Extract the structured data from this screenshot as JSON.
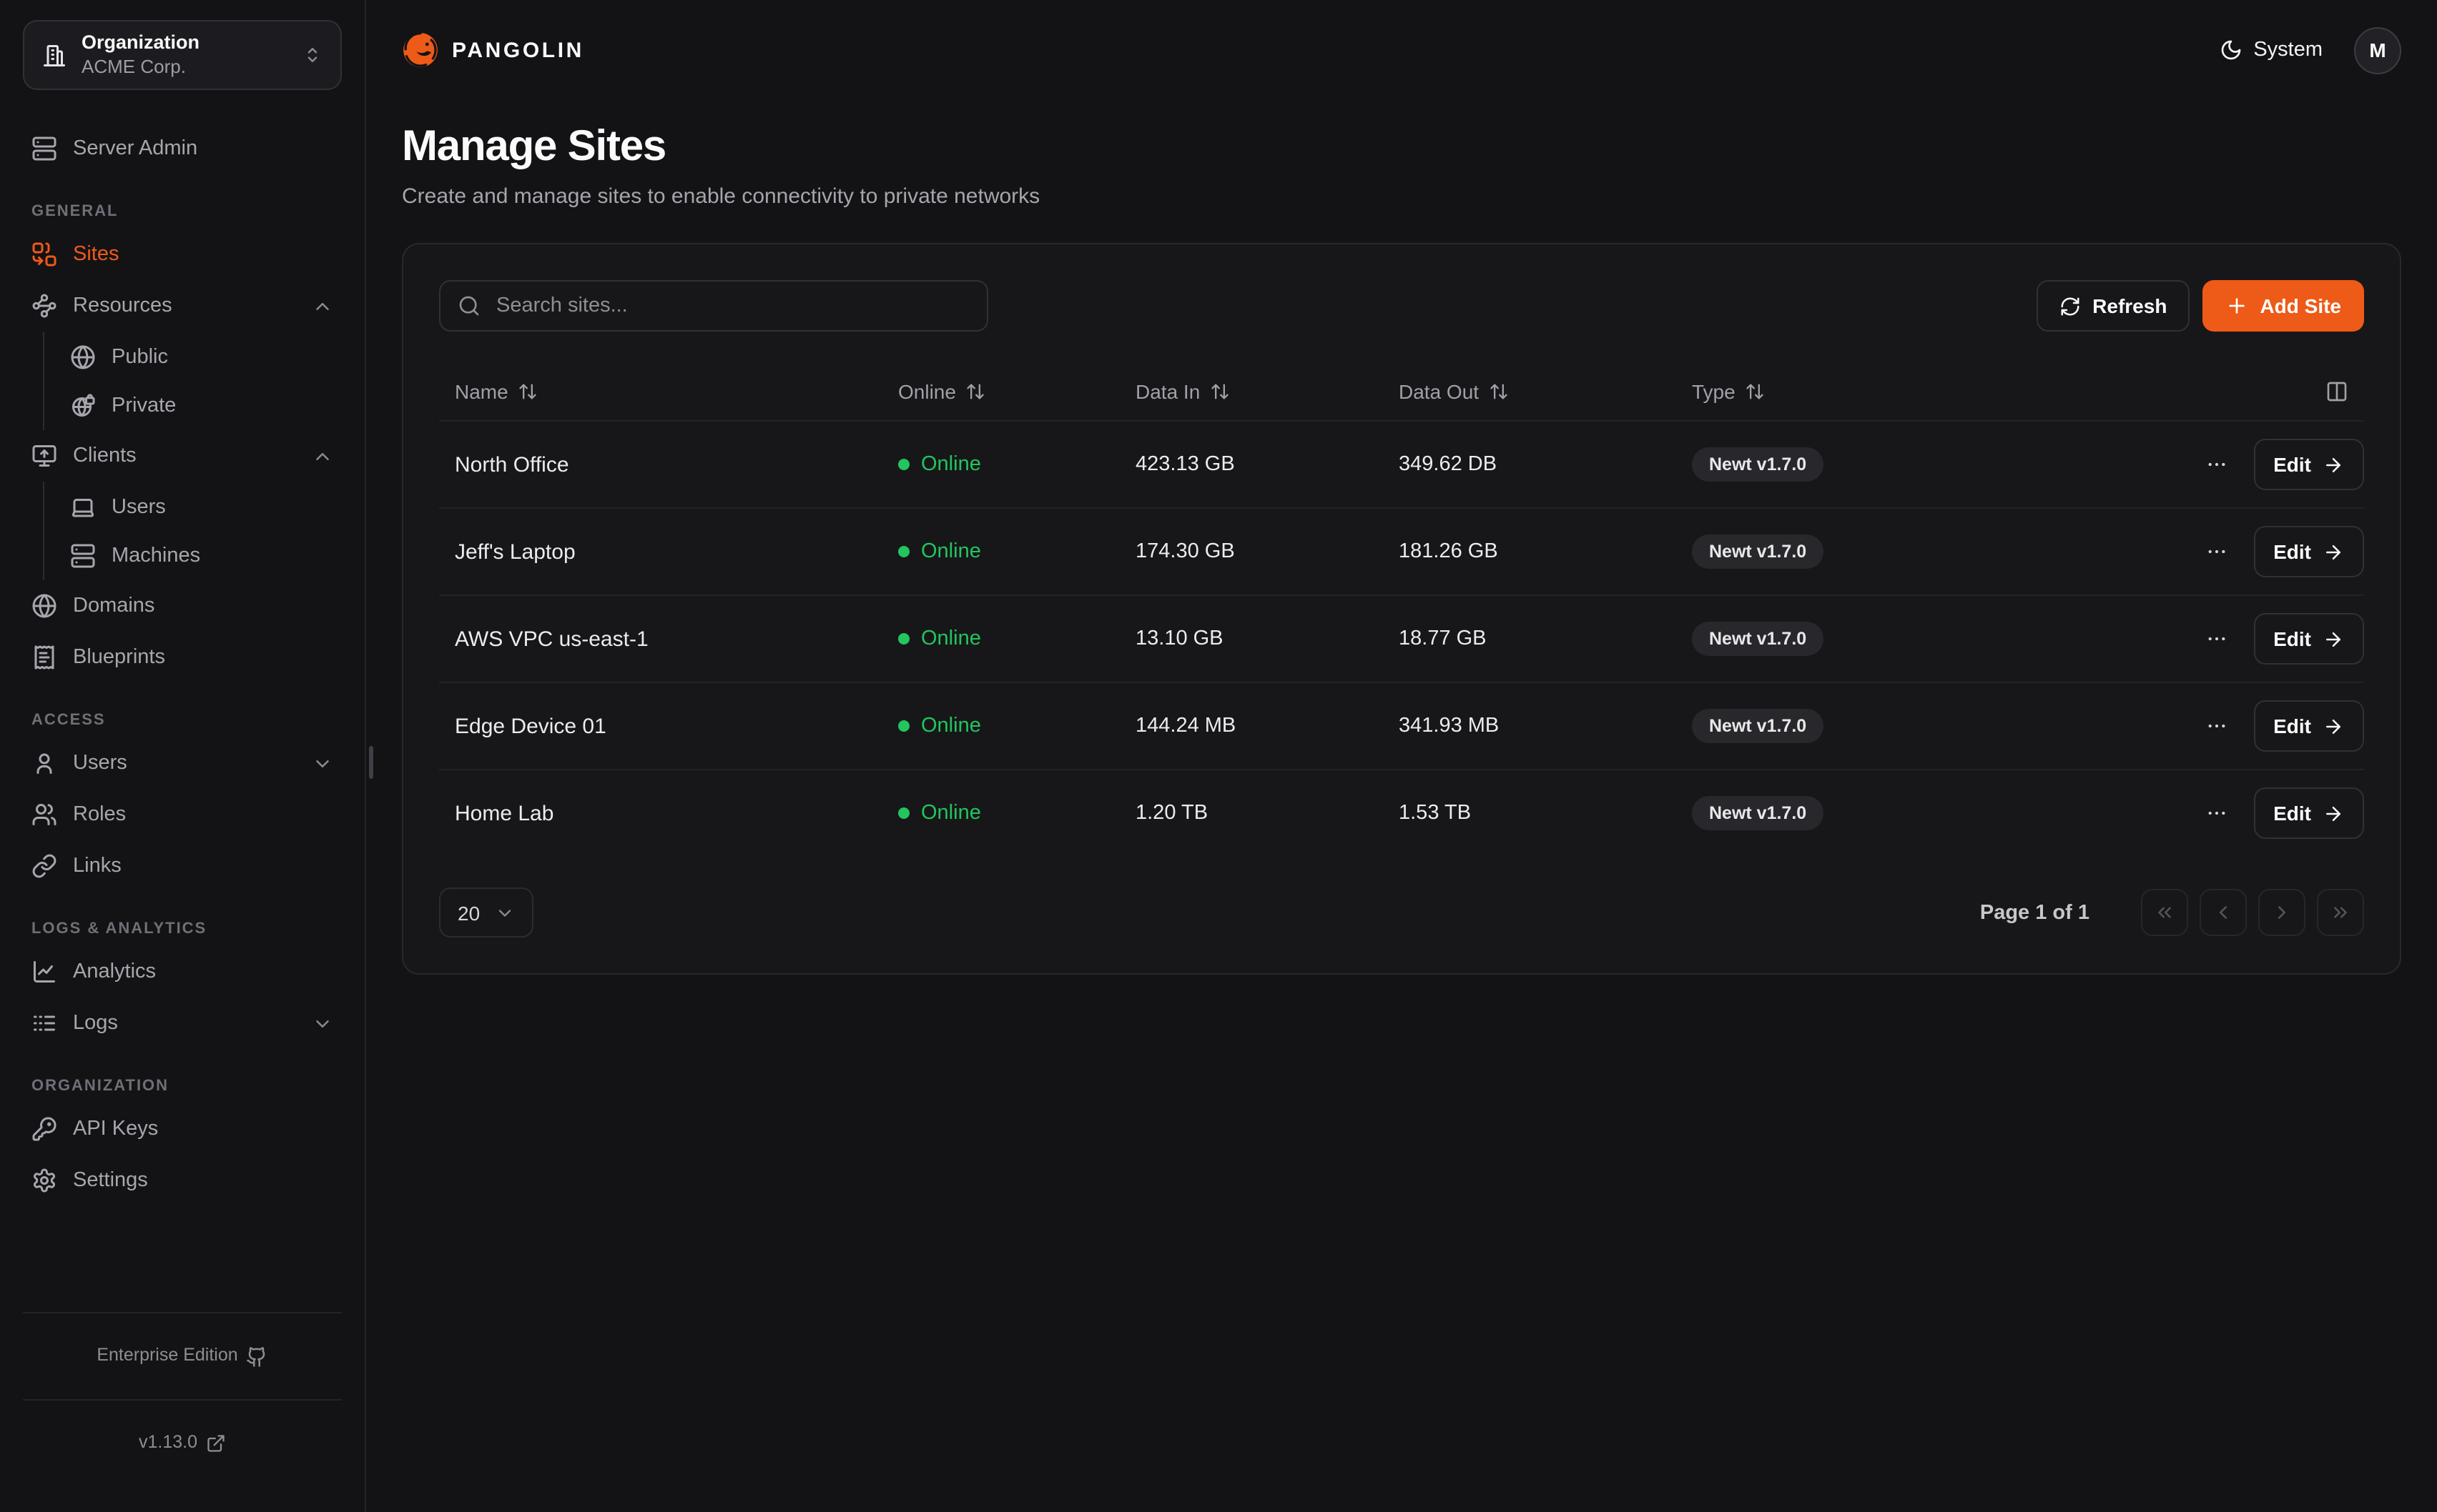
{
  "brand": {
    "name": "PANGOLIN",
    "logo_icon": "pangolin-logo"
  },
  "topbar": {
    "theme_label": "System",
    "theme_icon": "moon",
    "avatar_initial": "M"
  },
  "sidebar": {
    "org": {
      "label": "Organization",
      "value": "ACME Corp.",
      "icon": "building"
    },
    "server_admin": {
      "label": "Server Admin",
      "icon": "server"
    },
    "sections": [
      {
        "title": "GENERAL",
        "items": [
          {
            "label": "Sites",
            "icon": "combine",
            "active": true
          },
          {
            "label": "Resources",
            "icon": "waypoints",
            "expanded": true,
            "children": [
              {
                "label": "Public",
                "icon": "globe"
              },
              {
                "label": "Private",
                "icon": "globe-lock"
              }
            ]
          },
          {
            "label": "Clients",
            "icon": "monitor-up",
            "expanded": true,
            "children": [
              {
                "label": "Users",
                "icon": "laptop"
              },
              {
                "label": "Machines",
                "icon": "server"
              }
            ]
          },
          {
            "label": "Domains",
            "icon": "globe"
          },
          {
            "label": "Blueprints",
            "icon": "receipt-text"
          }
        ]
      },
      {
        "title": "ACCESS",
        "items": [
          {
            "label": "Users",
            "icon": "user",
            "collapsed": true
          },
          {
            "label": "Roles",
            "icon": "users"
          },
          {
            "label": "Links",
            "icon": "link"
          }
        ]
      },
      {
        "title": "LOGS & ANALYTICS",
        "items": [
          {
            "label": "Analytics",
            "icon": "chart-line"
          },
          {
            "label": "Logs",
            "icon": "logs",
            "collapsed": true
          }
        ]
      },
      {
        "title": "ORGANIZATION",
        "items": [
          {
            "label": "API Keys",
            "icon": "key-round"
          },
          {
            "label": "Settings",
            "icon": "settings"
          }
        ]
      }
    ],
    "footer": {
      "edition": "Enterprise Edition",
      "version": "v1.13.0"
    }
  },
  "page": {
    "title": "Manage Sites",
    "subtitle": "Create and manage sites to enable connectivity to private networks"
  },
  "toolbar": {
    "search_placeholder": "Search sites...",
    "refresh_label": "Refresh",
    "add_site_label": "Add Site"
  },
  "table": {
    "columns": [
      "Name",
      "Online",
      "Data In",
      "Data Out",
      "Type"
    ],
    "rows": [
      {
        "name": "North Office",
        "status": "Online",
        "data_in": "423.13 GB",
        "data_out": "349.62 DB",
        "type": "Newt v1.7.0",
        "edit_label": "Edit"
      },
      {
        "name": "Jeff's Laptop",
        "status": "Online",
        "data_in": "174.30 GB",
        "data_out": "181.26 GB",
        "type": "Newt v1.7.0",
        "edit_label": "Edit"
      },
      {
        "name": "AWS VPC us-east-1",
        "status": "Online",
        "data_in": "13.10 GB",
        "data_out": "18.77 GB",
        "type": "Newt v1.7.0",
        "edit_label": "Edit"
      },
      {
        "name": "Edge Device 01",
        "status": "Online",
        "data_in": "144.24 MB",
        "data_out": "341.93 MB",
        "type": "Newt v1.7.0",
        "edit_label": "Edit"
      },
      {
        "name": "Home Lab",
        "status": "Online",
        "data_in": "1.20 TB",
        "data_out": "1.53 TB",
        "type": "Newt v1.7.0",
        "edit_label": "Edit"
      }
    ]
  },
  "pagination": {
    "page_size": "20",
    "page_info": "Page 1 of 1"
  },
  "colors": {
    "accent": "#ee5a17",
    "online": "#22c55e",
    "background": "#131315",
    "card": "#171719"
  }
}
